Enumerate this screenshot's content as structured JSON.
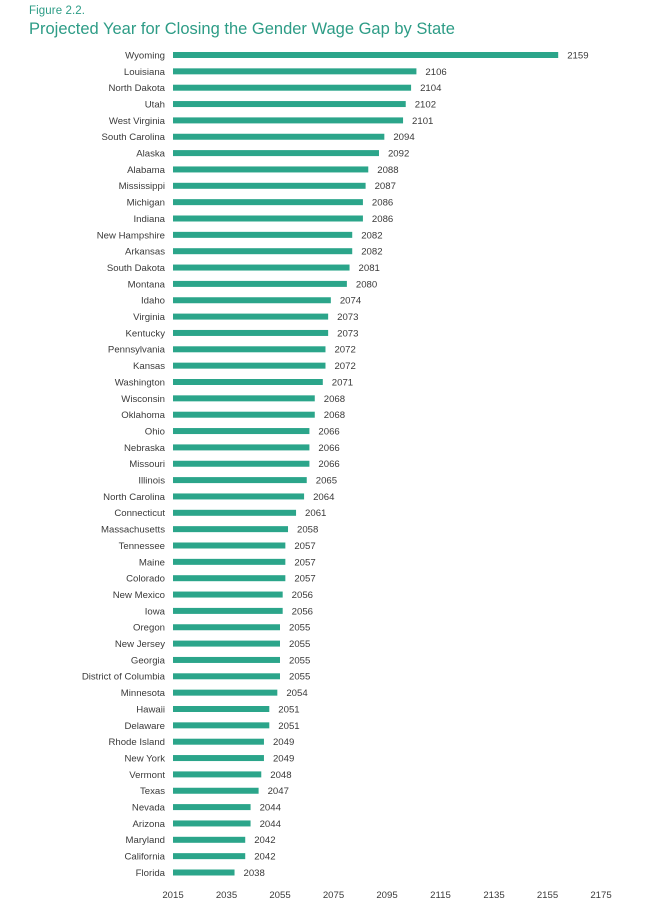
{
  "header": {
    "figure_label": "Figure 2.2.",
    "title": "Projected Year for Closing the Gender Wage Gap by State"
  },
  "colors": {
    "bar": "#2ba58a",
    "title": "#2d9c86",
    "text": "#3a3a3a"
  },
  "chart_data": {
    "type": "bar",
    "orientation": "horizontal",
    "title": "Projected Year for Closing the Gender Wage Gap by State",
    "xlabel": "",
    "ylabel": "",
    "xlim": [
      2015,
      2175
    ],
    "xticks": [
      2015,
      2035,
      2055,
      2075,
      2095,
      2115,
      2135,
      2155,
      2175
    ],
    "grid": false,
    "categories": [
      "Wyoming",
      "Louisiana",
      "North Dakota",
      "Utah",
      "West Virginia",
      "South Carolina",
      "Alaska",
      "Alabama",
      "Mississippi",
      "Michigan",
      "Indiana",
      "New Hampshire",
      "Arkansas",
      "South Dakota",
      "Montana",
      "Idaho",
      "Virginia",
      "Kentucky",
      "Pennsylvania",
      "Kansas",
      "Washington",
      "Wisconsin",
      "Oklahoma",
      "Ohio",
      "Nebraska",
      "Missouri",
      "Illinois",
      "North Carolina",
      "Connecticut",
      "Massachusetts",
      "Tennessee",
      "Maine",
      "Colorado",
      "New Mexico",
      "Iowa",
      "Oregon",
      "New Jersey",
      "Georgia",
      "District of Columbia",
      "Minnesota",
      "Hawaii",
      "Delaware",
      "Rhode Island",
      "New York",
      "Vermont",
      "Texas",
      "Nevada",
      "Arizona",
      "Maryland",
      "California",
      "Florida"
    ],
    "values": [
      2159,
      2106,
      2104,
      2102,
      2101,
      2094,
      2092,
      2088,
      2087,
      2086,
      2086,
      2082,
      2082,
      2081,
      2080,
      2074,
      2073,
      2073,
      2072,
      2072,
      2071,
      2068,
      2068,
      2066,
      2066,
      2066,
      2065,
      2064,
      2061,
      2058,
      2057,
      2057,
      2057,
      2056,
      2056,
      2055,
      2055,
      2055,
      2055,
      2054,
      2051,
      2051,
      2049,
      2049,
      2048,
      2047,
      2044,
      2044,
      2042,
      2042,
      2038
    ]
  }
}
